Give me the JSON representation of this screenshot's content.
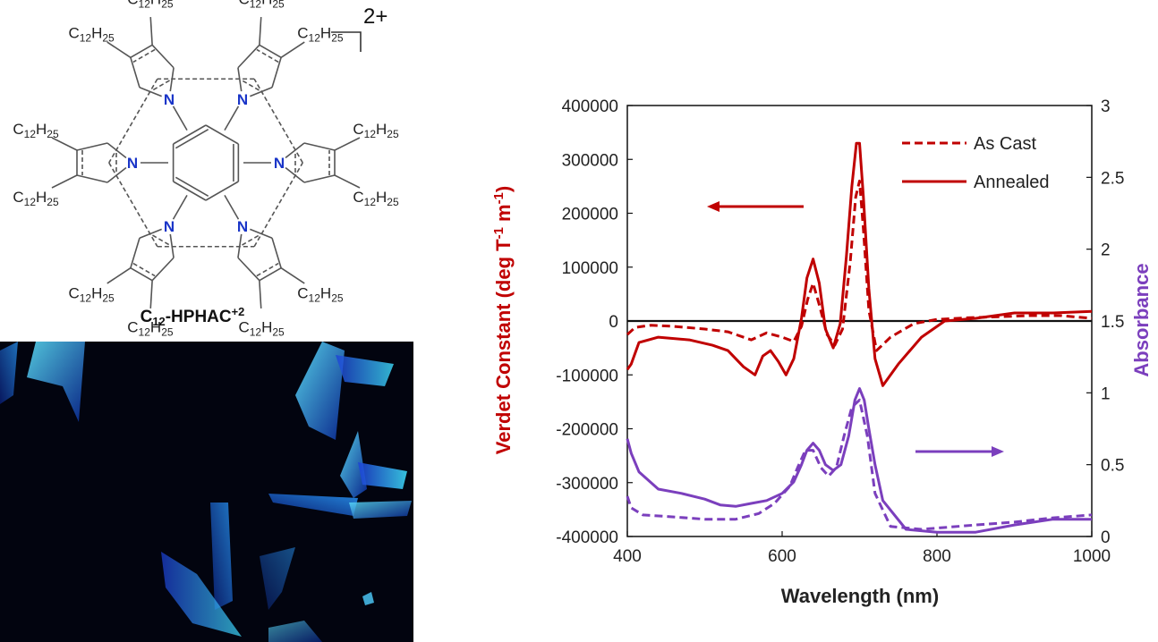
{
  "molecule": {
    "charge": "2+",
    "substituent": {
      "main": "C",
      "sub1": "12",
      "mid": "H",
      "sub2": "25"
    },
    "nitrogen": "N",
    "name": {
      "main": "C",
      "sub": "12",
      "rest": "-HPHAC",
      "sup": "+2"
    }
  },
  "colors": {
    "red": "#c00000",
    "purple": "#7b3fbd",
    "nitrogen": "#1a35c8",
    "crystal_bg": "#02040f"
  },
  "chart_data": {
    "type": "line",
    "xlabel": "Wavelength (nm)",
    "ylabel_left": {
      "main": "Verdet Constant (deg T",
      "sup1": "-1",
      "mid": " m",
      "sup2": "-1",
      "end": ")"
    },
    "ylabel_right": "Absorbance",
    "xlim": [
      400,
      1000
    ],
    "ylim_left": [
      -400000,
      400000
    ],
    "ylim_right": [
      0,
      3
    ],
    "x_ticks": [
      "400",
      "600",
      "800",
      "1000"
    ],
    "x_tick_values": [
      400,
      600,
      800,
      1000
    ],
    "y_left_ticks": [
      "400000",
      "300000",
      "200000",
      "100000",
      "0",
      "-100000",
      "-200000",
      "-300000",
      "-400000"
    ],
    "y_left_tick_values": [
      400000,
      300000,
      200000,
      100000,
      0,
      -100000,
      -200000,
      -300000,
      -400000
    ],
    "y_right_ticks": [
      "3",
      "2.5",
      "2",
      "1.5",
      "1",
      "0.5",
      "0"
    ],
    "y_right_tick_values": [
      3,
      2.5,
      2,
      1.5,
      1,
      0.5,
      0
    ],
    "legend": {
      "position": "top-right",
      "entries": [
        {
          "label": "As Cast",
          "style": "dashed"
        },
        {
          "label": "Annealed",
          "style": "solid"
        }
      ]
    },
    "series": [
      {
        "label": "As Cast",
        "quantity": "verdet",
        "axis": "left",
        "style": "dashed",
        "x": [
          400,
          410,
          430,
          460,
          500,
          530,
          560,
          580,
          600,
          615,
          625,
          633,
          640,
          648,
          658,
          668,
          678,
          688,
          695,
          700,
          705,
          712,
          722,
          740,
          770,
          800,
          840,
          880,
          920,
          960,
          1000
        ],
        "y": [
          -25000,
          -12000,
          -8000,
          -10000,
          -15000,
          -20000,
          -35000,
          -22000,
          -30000,
          -38000,
          -10000,
          40000,
          70000,
          30000,
          -25000,
          -45000,
          -15000,
          110000,
          230000,
          260000,
          170000,
          20000,
          -55000,
          -30000,
          -5000,
          3000,
          6000,
          8000,
          10000,
          10000,
          5000
        ]
      },
      {
        "label": "Annealed",
        "quantity": "verdet",
        "axis": "left",
        "style": "solid",
        "x": [
          400,
          405,
          415,
          440,
          480,
          510,
          530,
          550,
          565,
          575,
          585,
          595,
          605,
          615,
          625,
          632,
          640,
          648,
          656,
          666,
          675,
          683,
          690,
          696,
          700,
          705,
          712,
          720,
          730,
          750,
          780,
          810,
          850,
          900,
          950,
          1000
        ],
        "y": [
          -90000,
          -80000,
          -40000,
          -30000,
          -35000,
          -45000,
          -55000,
          -85000,
          -100000,
          -65000,
          -55000,
          -75000,
          -100000,
          -70000,
          5000,
          80000,
          115000,
          70000,
          -15000,
          -50000,
          -5000,
          120000,
          250000,
          330000,
          330000,
          230000,
          60000,
          -70000,
          -120000,
          -80000,
          -30000,
          0,
          5000,
          15000,
          15000,
          18000
        ]
      },
      {
        "label": "As Cast",
        "quantity": "absorbance",
        "axis": "right",
        "style": "dashed",
        "x": [
          400,
          405,
          420,
          450,
          500,
          540,
          570,
          590,
          610,
          620,
          630,
          640,
          650,
          660,
          670,
          680,
          690,
          700,
          710,
          720,
          740,
          780,
          850,
          900,
          950,
          1000
        ],
        "y": [
          0.28,
          0.2,
          0.15,
          0.14,
          0.12,
          0.12,
          0.16,
          0.23,
          0.35,
          0.48,
          0.6,
          0.6,
          0.48,
          0.42,
          0.48,
          0.7,
          0.9,
          0.95,
          0.7,
          0.3,
          0.07,
          0.05,
          0.08,
          0.1,
          0.13,
          0.15
        ]
      },
      {
        "label": "Annealed",
        "quantity": "absorbance",
        "axis": "right",
        "style": "solid",
        "x": [
          400,
          405,
          415,
          440,
          470,
          500,
          520,
          540,
          560,
          580,
          600,
          615,
          625,
          632,
          640,
          648,
          656,
          666,
          676,
          686,
          694,
          700,
          706,
          712,
          720,
          730,
          760,
          800,
          850,
          900,
          950,
          1000
        ],
        "y": [
          0.68,
          0.58,
          0.45,
          0.33,
          0.3,
          0.26,
          0.22,
          0.21,
          0.23,
          0.25,
          0.3,
          0.38,
          0.5,
          0.6,
          0.65,
          0.6,
          0.5,
          0.46,
          0.5,
          0.7,
          0.95,
          1.03,
          0.95,
          0.75,
          0.5,
          0.25,
          0.05,
          0.03,
          0.03,
          0.08,
          0.12,
          0.12
        ]
      }
    ],
    "annotations": [
      {
        "type": "arrow",
        "direction": "left",
        "color": "red",
        "points_to": "left axis"
      },
      {
        "type": "arrow",
        "direction": "right",
        "color": "purple",
        "points_to": "right axis"
      }
    ]
  }
}
